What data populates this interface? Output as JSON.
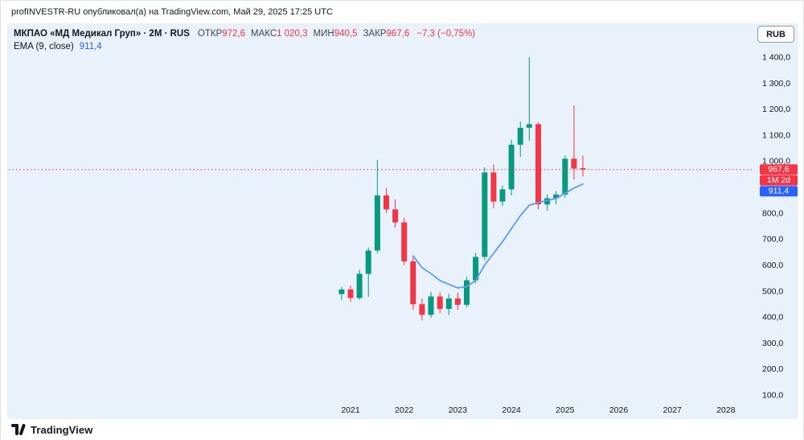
{
  "header": {
    "byline": "profINVESTR-RU опубликовал(а) на TradingView.com, Май 29, 2025 17:25 UTC"
  },
  "toolbar": {
    "currency_button": "RUB"
  },
  "legend": {
    "title": "МКПАО «МД Медикал Груп» · 2M · RUS",
    "open_label": "ОТКР",
    "open": "972,6",
    "high_label": "МАКС",
    "high": "1 020,3",
    "low_label": "МИН",
    "low": "940,5",
    "close_label": "ЗАКР",
    "close": "967,6",
    "change": "−7,3 (−0,75%)",
    "ema_name": "EMA (9, close)",
    "ema_value": "911,4"
  },
  "axis": {
    "price_labels": [
      {
        "value": 1400,
        "label": "1 400,0"
      },
      {
        "value": 1300,
        "label": "1 300,0"
      },
      {
        "value": 1200,
        "label": "1 200,0"
      },
      {
        "value": 1100,
        "label": "1 100,0"
      },
      {
        "value": 1000,
        "label": "1 000,0"
      },
      {
        "value": 800,
        "label": "800,0"
      },
      {
        "value": 700,
        "label": "700,0"
      },
      {
        "value": 600,
        "label": "600,0"
      },
      {
        "value": 500,
        "label": "500,0"
      },
      {
        "value": 400,
        "label": "400,0"
      },
      {
        "value": 300,
        "label": "300,0"
      },
      {
        "value": 200,
        "label": "200,0"
      },
      {
        "value": 100,
        "label": "100,0"
      }
    ],
    "year_labels": [
      {
        "t": 2021,
        "label": "2021"
      },
      {
        "t": 2022,
        "label": "2022"
      },
      {
        "t": 2023,
        "label": "2023"
      },
      {
        "t": 2024,
        "label": "2024"
      },
      {
        "t": 2025,
        "label": "2025"
      },
      {
        "t": 2026,
        "label": "2026"
      },
      {
        "t": 2027,
        "label": "2027"
      },
      {
        "t": 2028,
        "label": "2028"
      }
    ]
  },
  "badges": {
    "price": {
      "text": "967,6"
    },
    "countdown": {
      "text": "1M 2d"
    },
    "ema": {
      "text": "911,4"
    }
  },
  "colors": {
    "up": "#089981",
    "down": "#f23645",
    "ema_line": "#5b9cf5",
    "ema_badge": "#2962ff",
    "price_badge": "#f23645",
    "chart_bg": "#e9f1fa",
    "axis_text": "#131722"
  },
  "footer": {
    "brand": "TradingView"
  },
  "chart_data": {
    "type": "candlestick",
    "title": "МКПАО «МД Медикал Груп» · 2M · RUS",
    "symbol": "МД Медикал Груп",
    "interval": "2M",
    "exchange": "RUS",
    "currency": "RUB",
    "last_bar": {
      "open": 972.6,
      "high": 1020.3,
      "low": 940.5,
      "close": 967.6,
      "change": -7.3,
      "change_pct": -0.75
    },
    "price_line": 967.6,
    "ema_period": 9,
    "ema_last": 911.4,
    "x_ticks": [
      2021,
      2022,
      2023,
      2024,
      2025,
      2026,
      2027,
      2028
    ],
    "y_ticks": [
      100,
      200,
      300,
      400,
      500,
      600,
      700,
      800,
      900,
      1000,
      1100,
      1200,
      1300,
      1400
    ],
    "ylim": [
      60,
      1460
    ],
    "ohlc_columns": [
      "time_decimal_year",
      "open",
      "high",
      "low",
      "close"
    ],
    "ohlc": [
      [
        2020.833,
        488,
        516,
        466,
        506
      ],
      [
        2021.0,
        506,
        521,
        459,
        473
      ],
      [
        2021.167,
        473,
        582,
        466,
        566
      ],
      [
        2021.333,
        566,
        668,
        478,
        656
      ],
      [
        2021.5,
        656,
        1005,
        646,
        868
      ],
      [
        2021.667,
        868,
        896,
        800,
        814
      ],
      [
        2021.833,
        814,
        852,
        744,
        764
      ],
      [
        2022.0,
        764,
        781,
        599,
        614
      ],
      [
        2022.167,
        614,
        631,
        428,
        449
      ],
      [
        2022.333,
        449,
        471,
        387,
        408
      ],
      [
        2022.5,
        408,
        497,
        397,
        479
      ],
      [
        2022.667,
        479,
        496,
        414,
        431
      ],
      [
        2022.833,
        431,
        489,
        407,
        471
      ],
      [
        2023.0,
        471,
        493,
        427,
        447
      ],
      [
        2023.167,
        447,
        556,
        437,
        541
      ],
      [
        2023.333,
        541,
        646,
        529,
        631
      ],
      [
        2023.5,
        631,
        976,
        618,
        956
      ],
      [
        2023.667,
        956,
        986,
        818,
        844
      ],
      [
        2023.833,
        844,
        906,
        828,
        891
      ],
      [
        2024.0,
        891,
        1082,
        868,
        1063
      ],
      [
        2024.167,
        1063,
        1152,
        1016,
        1128
      ],
      [
        2024.333,
        1128,
        1400,
        1078,
        1142
      ],
      [
        2024.5,
        1142,
        1150,
        814,
        833
      ],
      [
        2024.667,
        833,
        871,
        809,
        857
      ],
      [
        2024.833,
        857,
        884,
        834,
        871
      ],
      [
        2025.0,
        871,
        1021,
        859,
        1009
      ],
      [
        2025.167,
        1009,
        1214,
        929,
        971
      ],
      [
        2025.333,
        972.6,
        1020.3,
        940.5,
        967.6
      ]
    ],
    "ema9": [
      null,
      null,
      null,
      null,
      null,
      null,
      null,
      null,
      635,
      590,
      567,
      540,
      526,
      512,
      517,
      540,
      600,
      645,
      690,
      740,
      790,
      830,
      840,
      848,
      856,
      876,
      896,
      911.4
    ]
  }
}
